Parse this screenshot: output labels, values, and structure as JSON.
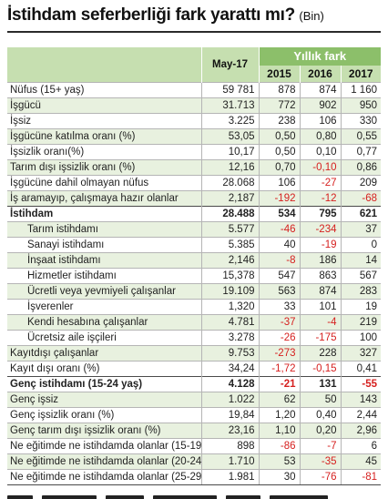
{
  "title": {
    "main": "İstihdam seferberliği fark yarattı mı?",
    "unit": "(Bin)"
  },
  "header": {
    "may_label": "May-17",
    "yillik_fark": "Yıllık fark",
    "years": [
      "2015",
      "2016",
      "2017"
    ]
  },
  "rows": [
    {
      "label": "Nüfus (15+ yaş)",
      "may": "59 781",
      "y2015": "878",
      "y2016": "874",
      "y2017": "1 160",
      "bold": false,
      "indent": false,
      "alt": false,
      "gap": false
    },
    {
      "label": "İşgücü",
      "may": "31.713",
      "y2015": "772",
      "y2016": "902",
      "y2017": "950",
      "bold": false,
      "indent": false,
      "alt": true,
      "gap": false
    },
    {
      "label": "İşsiz",
      "may": "3.225",
      "y2015": "238",
      "y2016": "106",
      "y2017": "330",
      "bold": false,
      "indent": false,
      "alt": false,
      "gap": false
    },
    {
      "label": "İşgücüne katılma oranı (%)",
      "may": "53,05",
      "y2015": "0,50",
      "y2016": "0,80",
      "y2017": "0,55",
      "bold": false,
      "indent": false,
      "alt": true,
      "gap": false
    },
    {
      "label": "İşsizlik oranı(%)",
      "may": "10,17",
      "y2015": "0,50",
      "y2016": "0,10",
      "y2017": "0,77",
      "bold": false,
      "indent": false,
      "alt": false,
      "gap": false
    },
    {
      "label": "Tarım dışı işsizlik oranı (%)",
      "may": "12,16",
      "y2015": "0,70",
      "y2016": "-0,10",
      "y2017": "0,86",
      "bold": false,
      "indent": false,
      "alt": true,
      "gap": false
    },
    {
      "label": "İşgücüne dahil olmayan nüfus",
      "may": "28.068",
      "y2015": "106",
      "y2016": "-27",
      "y2017": "209",
      "bold": false,
      "indent": false,
      "alt": false,
      "gap": false
    },
    {
      "label": "İş aramayıp, çalışmaya hazır olanlar",
      "may": "2,187",
      "y2015": "-192",
      "y2016": "-12",
      "y2017": "-68",
      "bold": false,
      "indent": false,
      "alt": true,
      "gap": false
    },
    {
      "label": "İstihdam",
      "may": "28.488",
      "y2015": "534",
      "y2016": "795",
      "y2017": "621",
      "bold": true,
      "indent": false,
      "alt": false,
      "gap": true
    },
    {
      "label": "Tarım istihdamı",
      "may": "5.577",
      "y2015": "-46",
      "y2016": "-234",
      "y2017": "37",
      "bold": false,
      "indent": true,
      "alt": true,
      "gap": false
    },
    {
      "label": "Sanayi istihdamı",
      "may": "5.385",
      "y2015": "40",
      "y2016": "-19",
      "y2017": "0",
      "bold": false,
      "indent": true,
      "alt": false,
      "gap": false
    },
    {
      "label": "İnşaat istihdamı",
      "may": "2,146",
      "y2015": "-8",
      "y2016": "186",
      "y2017": "14",
      "bold": false,
      "indent": true,
      "alt": true,
      "gap": false
    },
    {
      "label": "Hizmetler istihdamı",
      "may": "15,378",
      "y2015": "547",
      "y2016": "863",
      "y2017": "567",
      "bold": false,
      "indent": true,
      "alt": false,
      "gap": false
    },
    {
      "label": "Ücretli veya yevmiyeli çalışanlar",
      "may": "19.109",
      "y2015": "563",
      "y2016": "874",
      "y2017": "283",
      "bold": false,
      "indent": true,
      "alt": true,
      "gap": false
    },
    {
      "label": "İşverenler",
      "may": "1,320",
      "y2015": "33",
      "y2016": "101",
      "y2017": "19",
      "bold": false,
      "indent": true,
      "alt": false,
      "gap": false
    },
    {
      "label": "Kendi hesabına çalışanlar",
      "may": "4.781",
      "y2015": "-37",
      "y2016": "-4",
      "y2017": "219",
      "bold": false,
      "indent": true,
      "alt": true,
      "gap": false
    },
    {
      "label": "Ücretsiz aile işçileri",
      "may": "3.278",
      "y2015": "-26",
      "y2016": "-175",
      "y2017": "100",
      "bold": false,
      "indent": true,
      "alt": false,
      "gap": false
    },
    {
      "label": "Kayıtdışı çalışanlar",
      "may": "9.753",
      "y2015": "-273",
      "y2016": "228",
      "y2017": "327",
      "bold": false,
      "indent": false,
      "alt": true,
      "gap": false
    },
    {
      "label": "Kayıt dışı oranı (%)",
      "may": "34,24",
      "y2015": "-1,72",
      "y2016": "-0,15",
      "y2017": "0,41",
      "bold": false,
      "indent": false,
      "alt": false,
      "gap": false
    },
    {
      "label": "Genç istihdamı (15-24 yaş)",
      "may": "4.128",
      "y2015": "-21",
      "y2016": "131",
      "y2017": "-55",
      "bold": true,
      "indent": false,
      "alt": false,
      "gap": true
    },
    {
      "label": "Genç işsiz",
      "may": "1.022",
      "y2015": "62",
      "y2016": "50",
      "y2017": "143",
      "bold": false,
      "indent": false,
      "alt": true,
      "gap": false
    },
    {
      "label": "Genç işsizlik oranı (%)",
      "may": "19,84",
      "y2015": "1,20",
      "y2016": "0,40",
      "y2017": "2,44",
      "bold": false,
      "indent": false,
      "alt": false,
      "gap": false
    },
    {
      "label": "Genç tarım dışı işsizlik oranı (%)",
      "may": "23,16",
      "y2015": "1,10",
      "y2016": "0,20",
      "y2017": "2,96",
      "bold": false,
      "indent": false,
      "alt": true,
      "gap": false
    },
    {
      "label": "Ne eğitimde ne istihdamda olanlar  (15-19 yaş)",
      "may": "898",
      "y2015": "-86",
      "y2016": "-7",
      "y2017": "6",
      "bold": false,
      "indent": false,
      "alt": false,
      "gap": false
    },
    {
      "label": "Ne eğitimde ne istihdamda olanlar (20-24 yaş)",
      "may": "1.710",
      "y2015": "53",
      "y2016": "-35",
      "y2017": "45",
      "bold": false,
      "indent": false,
      "alt": true,
      "gap": false
    },
    {
      "label": "Ne eğitimde ne istihdamda olanlar (25-29 yaş)",
      "may": "1.981",
      "y2015": "30",
      "y2016": "-76",
      "y2017": "-81",
      "bold": false,
      "indent": false,
      "alt": false,
      "gap": false
    }
  ],
  "colors": {
    "header_light": "#c6dfb0",
    "header_dark": "#8cbf6a",
    "row_alt": "#e8f1df",
    "negative": "#d6201f"
  }
}
